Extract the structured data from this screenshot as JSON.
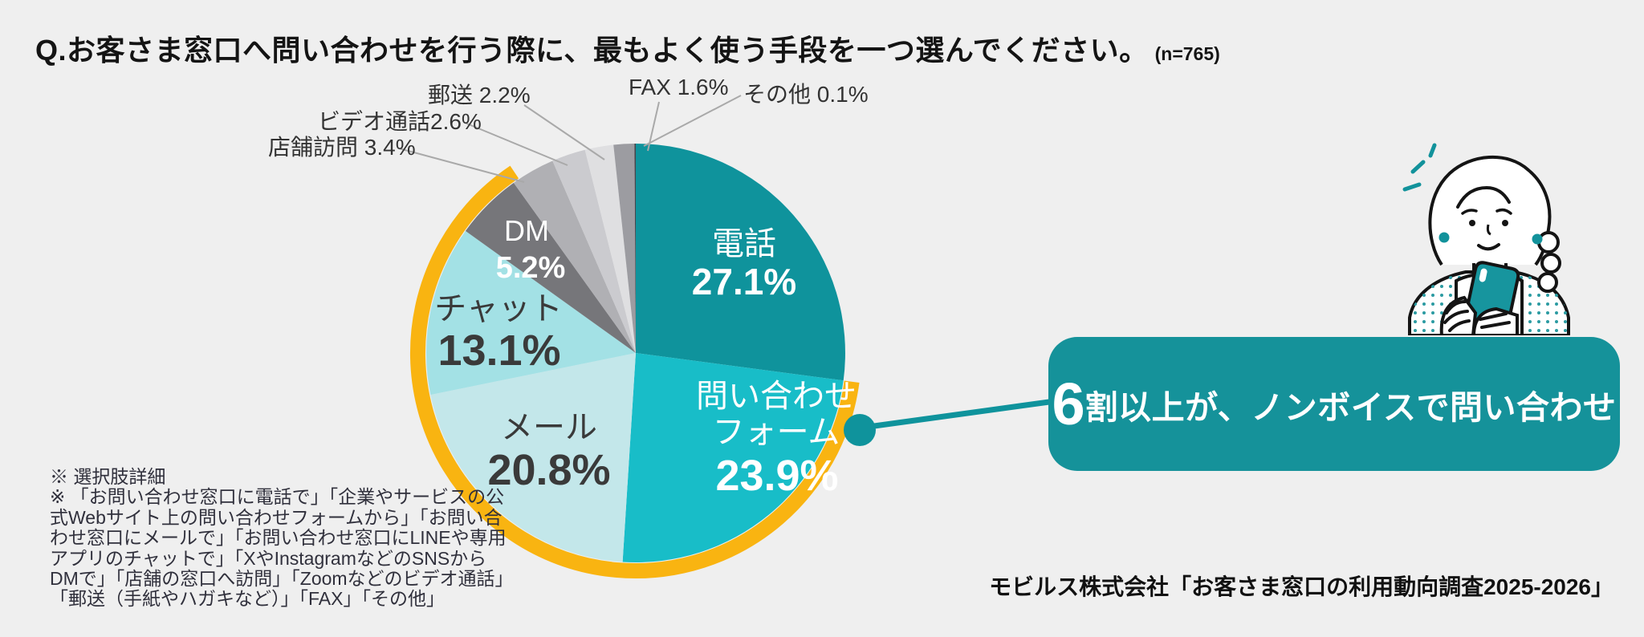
{
  "header": {
    "question": "Q.お客さま窓口へ問い合わせを行う際に、最もよく使う手段を一つ選んでください。",
    "sample": "(n=765)"
  },
  "chart_data": {
    "type": "pie",
    "title": "お客さま窓口へ問い合わせを行う際に最もよく使う手段",
    "n": 765,
    "unit": "%",
    "direction": "clockwise",
    "start_angle_deg": 0,
    "slices": [
      {
        "label": "電話",
        "value": 27.1,
        "color": "#0f939c",
        "label_color": "#ffffff",
        "placement": "inside"
      },
      {
        "label": "問い合わせフォーム",
        "value": 23.9,
        "color": "#18bdc8",
        "label_color": "#ffffff",
        "placement": "inside"
      },
      {
        "label": "メール",
        "value": 20.8,
        "color": "#c3e7ea",
        "label_color": "#3a3a3a",
        "placement": "inside"
      },
      {
        "label": "チャット",
        "value": 13.1,
        "color": "#a3e1e5",
        "label_color": "#3a3a3a",
        "placement": "inside"
      },
      {
        "label": "DM",
        "value": 5.2,
        "color": "#76767a",
        "label_color": "#ffffff",
        "placement": "inside"
      },
      {
        "label": "店舗訪問",
        "value": 3.4,
        "color": "#b0b0b4",
        "placement": "outside",
        "display": "店舗訪問 3.4%"
      },
      {
        "label": "ビデオ通話",
        "value": 2.6,
        "color": "#cbcbcf",
        "placement": "outside",
        "display": "ビデオ通話2.6%"
      },
      {
        "label": "郵送",
        "value": 2.2,
        "color": "#dfdfe1",
        "placement": "outside",
        "display": "郵送 2.2%"
      },
      {
        "label": "FAX",
        "value": 1.6,
        "color": "#9c9ca1",
        "placement": "outside",
        "display": "FAX 1.6%"
      },
      {
        "label": "その他",
        "value": 0.1,
        "color": "#45454b",
        "placement": "outside",
        "display": "その他 0.1%"
      }
    ],
    "highlight_arc": {
      "color": "#f9b411",
      "from_cum_pct": 27.1,
      "to_cum_pct": 90.6
    }
  },
  "callout": {
    "big": "6",
    "rest": "割以上が、ノンボイスで問い合わせ",
    "bg": "#15929a",
    "connector_color": "#0f939c"
  },
  "footnote": {
    "text": "※ 選択肢詳細\n※ 「お問い合わせ窓口に電話で」「企業やサービスの公\n式Webサイト上の問い合わせフォームから」「お問い合\nわせ窓口にメールで」「お問い合わせ窓口にLINEや専用\nアプリのチャットで」「XやInstagramなどのSNSから\nDMで」「店舗の窓口へ訪問」「Zoomなどのビデオ通話」\n「郵送（手紙やハガキなど）」「FAX」「その他」"
  },
  "source": "モビルス株式会社「お客さま窓口の利用動向調査2025-2026」",
  "illustration": "woman-with-smartphone"
}
